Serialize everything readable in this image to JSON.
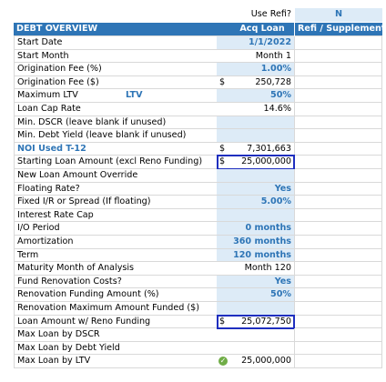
{
  "header": {
    "use_refi_label": "Use Refi?",
    "use_refi_value": "N"
  },
  "table": {
    "title": "DEBT OVERVIEW",
    "columns": [
      "Acq Loan",
      "Refi / Supplemental"
    ],
    "rows": [
      {
        "label": "Start Date",
        "value": "1/1/2022"
      },
      {
        "label": "Start Month",
        "value": "Month 1"
      },
      {
        "label": "Origination Fee (%)",
        "value": "1.00%"
      },
      {
        "label": "Origination Fee ($)",
        "currency": "$",
        "value": "250,728"
      },
      {
        "label": "Maximum LTV",
        "note": "LTV",
        "value": "50%"
      },
      {
        "label": "Loan Cap Rate",
        "value": "14.6%"
      },
      {
        "label": "Min. DSCR (leave blank if unused)"
      },
      {
        "label": "Min. Debt Yield (leave blank if unused)"
      },
      {
        "label": "NOI Used T-12",
        "currency": "$",
        "value": "7,301,663"
      },
      {
        "label": "Starting Loan Amount (excl Reno Funding)",
        "currency": "$",
        "value": "25,000,000"
      },
      {
        "label": "New Loan Amount Override"
      },
      {
        "label": "Floating Rate?",
        "value": "Yes"
      },
      {
        "label": "Fixed I/R or Spread (If floating)",
        "value": "5.00%"
      },
      {
        "label": "Interest Rate Cap"
      },
      {
        "label": "I/O Period",
        "value": "0 months"
      },
      {
        "label": "Amortization",
        "value": "360 months"
      },
      {
        "label": "Term",
        "value": "120 months"
      },
      {
        "label": "Maturity Month of Analysis",
        "value": "Month 120"
      },
      {
        "label": "Fund Renovation Costs?",
        "value": "Yes"
      },
      {
        "label": "Renovation Funding Amount (%)",
        "value": "50%"
      },
      {
        "label": "Renovation Maximum Amount Funded ($)"
      },
      {
        "label": "Loan Amount w/ Reno Funding",
        "currency": "$",
        "value": "25,072,750"
      },
      {
        "label": "Max Loan by DSCR"
      },
      {
        "label": "Max Loan by Debt Yield"
      },
      {
        "label": "Max Loan by LTV",
        "value": "25,000,000"
      }
    ]
  }
}
